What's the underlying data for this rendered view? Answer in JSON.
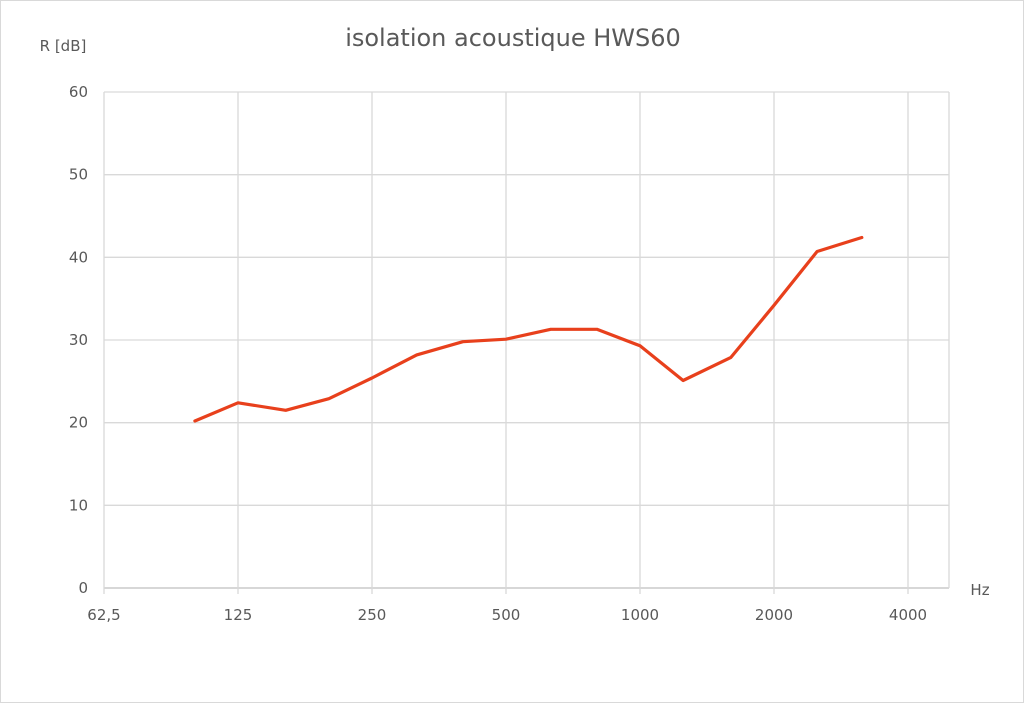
{
  "chart_data": {
    "type": "line",
    "title": "isolation acoustique HWS60",
    "ylabel": "R [dB]",
    "xlabel": "Hz",
    "x_scale": "log2",
    "x_ticks": [
      "62,5",
      "125",
      "250",
      "500",
      "1000",
      "2000",
      "4000"
    ],
    "xlim": [
      62.5,
      5000
    ],
    "ylim": [
      0,
      60
    ],
    "y_ticks": [
      "0",
      "10",
      "20",
      "30",
      "40",
      "50",
      "60"
    ],
    "grid": true,
    "legend": "none",
    "series": [
      {
        "color": "#e8401c",
        "x": [
          100,
          125,
          160,
          200,
          250,
          315,
          400,
          500,
          630,
          800,
          1000,
          1250,
          1600,
          2000,
          2500,
          3150
        ],
        "values": [
          20.2,
          22.4,
          21.5,
          22.9,
          25.4,
          28.2,
          29.8,
          30.1,
          31.3,
          31.3,
          29.3,
          25.1,
          27.9,
          34.2,
          40.7,
          42.4
        ]
      }
    ]
  }
}
